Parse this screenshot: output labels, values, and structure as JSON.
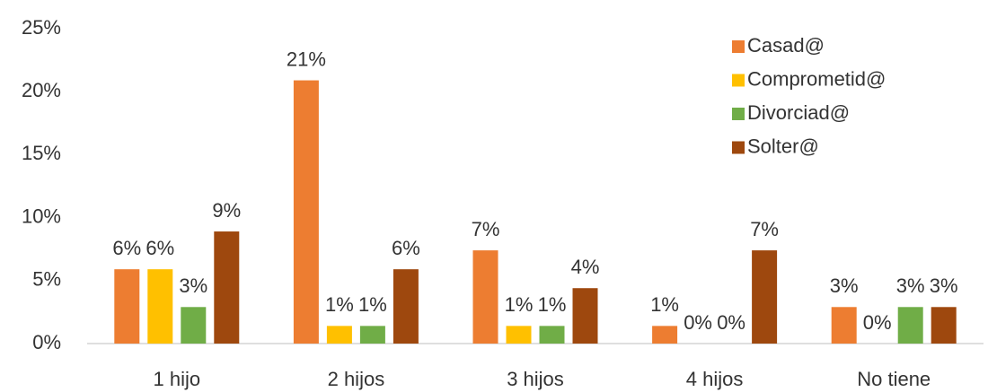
{
  "chart_data": {
    "type": "bar",
    "categories": [
      "1 hijo",
      "2 hijos",
      "3 hijos",
      "4 hijos",
      "No tiene"
    ],
    "series": [
      {
        "name": "Casad@",
        "color": "#ED7D31",
        "values": [
          5.9,
          20.9,
          7.4,
          1.4,
          2.9
        ],
        "value_labels": [
          "6%",
          "21%",
          "7%",
          "1%",
          "3%"
        ]
      },
      {
        "name": "Comprometid@",
        "color": "#FFC000",
        "values": [
          5.9,
          1.4,
          1.4,
          0,
          0
        ],
        "value_labels": [
          "6%",
          "1%",
          "1%",
          "0%",
          "0%"
        ]
      },
      {
        "name": "Divorciad@",
        "color": "#70AD47",
        "values": [
          2.9,
          1.4,
          1.4,
          0,
          2.9
        ],
        "value_labels": [
          "3%",
          "1%",
          "1%",
          "0%",
          "3%"
        ]
      },
      {
        "name": "Solter@",
        "color": "#9E480E",
        "values": [
          8.9,
          5.9,
          4.4,
          7.4,
          2.9
        ],
        "value_labels": [
          "9%",
          "6%",
          "4%",
          "7%",
          "3%"
        ]
      }
    ],
    "ylim": [
      0,
      25
    ],
    "yticks": [
      {
        "value": 0,
        "label": "0%"
      },
      {
        "value": 5,
        "label": "5%"
      },
      {
        "value": 10,
        "label": "10%"
      },
      {
        "value": 15,
        "label": "15%"
      },
      {
        "value": 20,
        "label": "20%"
      },
      {
        "value": 25,
        "label": "25%"
      }
    ],
    "grid": false,
    "legend": "upper right"
  }
}
